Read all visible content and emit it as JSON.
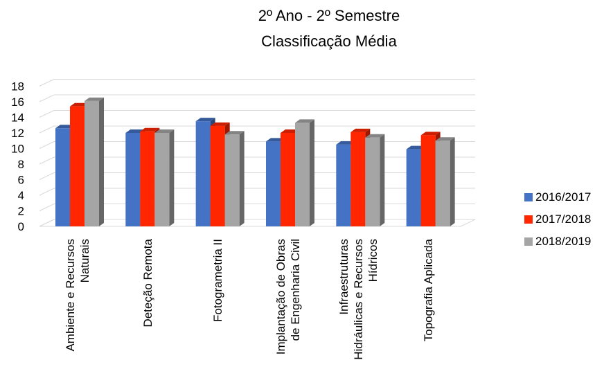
{
  "chart_data": {
    "type": "bar",
    "title": "2º Ano  - 2º Semestre",
    "subtitle": "Classificação Média",
    "categories": [
      [
        "Ambiente e Recursos",
        "Naturais"
      ],
      [
        "Deteção Remota"
      ],
      [
        "Fotogrametria II"
      ],
      [
        "Implantação de Obras",
        "de Engenharia Civil"
      ],
      [
        "Infraestruturas",
        "Hidráulicas e Recursos",
        "Hídricos"
      ],
      [
        "Topografia Aplicada"
      ]
    ],
    "series": [
      {
        "name": "2016/2017",
        "color": "#4472C4",
        "values": [
          12.6,
          12.0,
          13.5,
          10.9,
          10.5,
          9.9
        ]
      },
      {
        "name": "2017/2018",
        "color": "#FF2600",
        "values": [
          15.4,
          12.2,
          12.9,
          12.0,
          12.1,
          11.7
        ]
      },
      {
        "name": "2018/2019",
        "color": "#A5A5A5",
        "values": [
          16.1,
          12.0,
          11.8,
          13.3,
          11.4,
          11.0
        ]
      }
    ],
    "yticks": [
      "0",
      "2",
      "4",
      "6",
      "8",
      "10",
      "12",
      "14",
      "16",
      "18"
    ],
    "ylim": [
      0,
      18
    ],
    "grid": true,
    "legend_position": "right",
    "style": "3d-clustered-column"
  }
}
